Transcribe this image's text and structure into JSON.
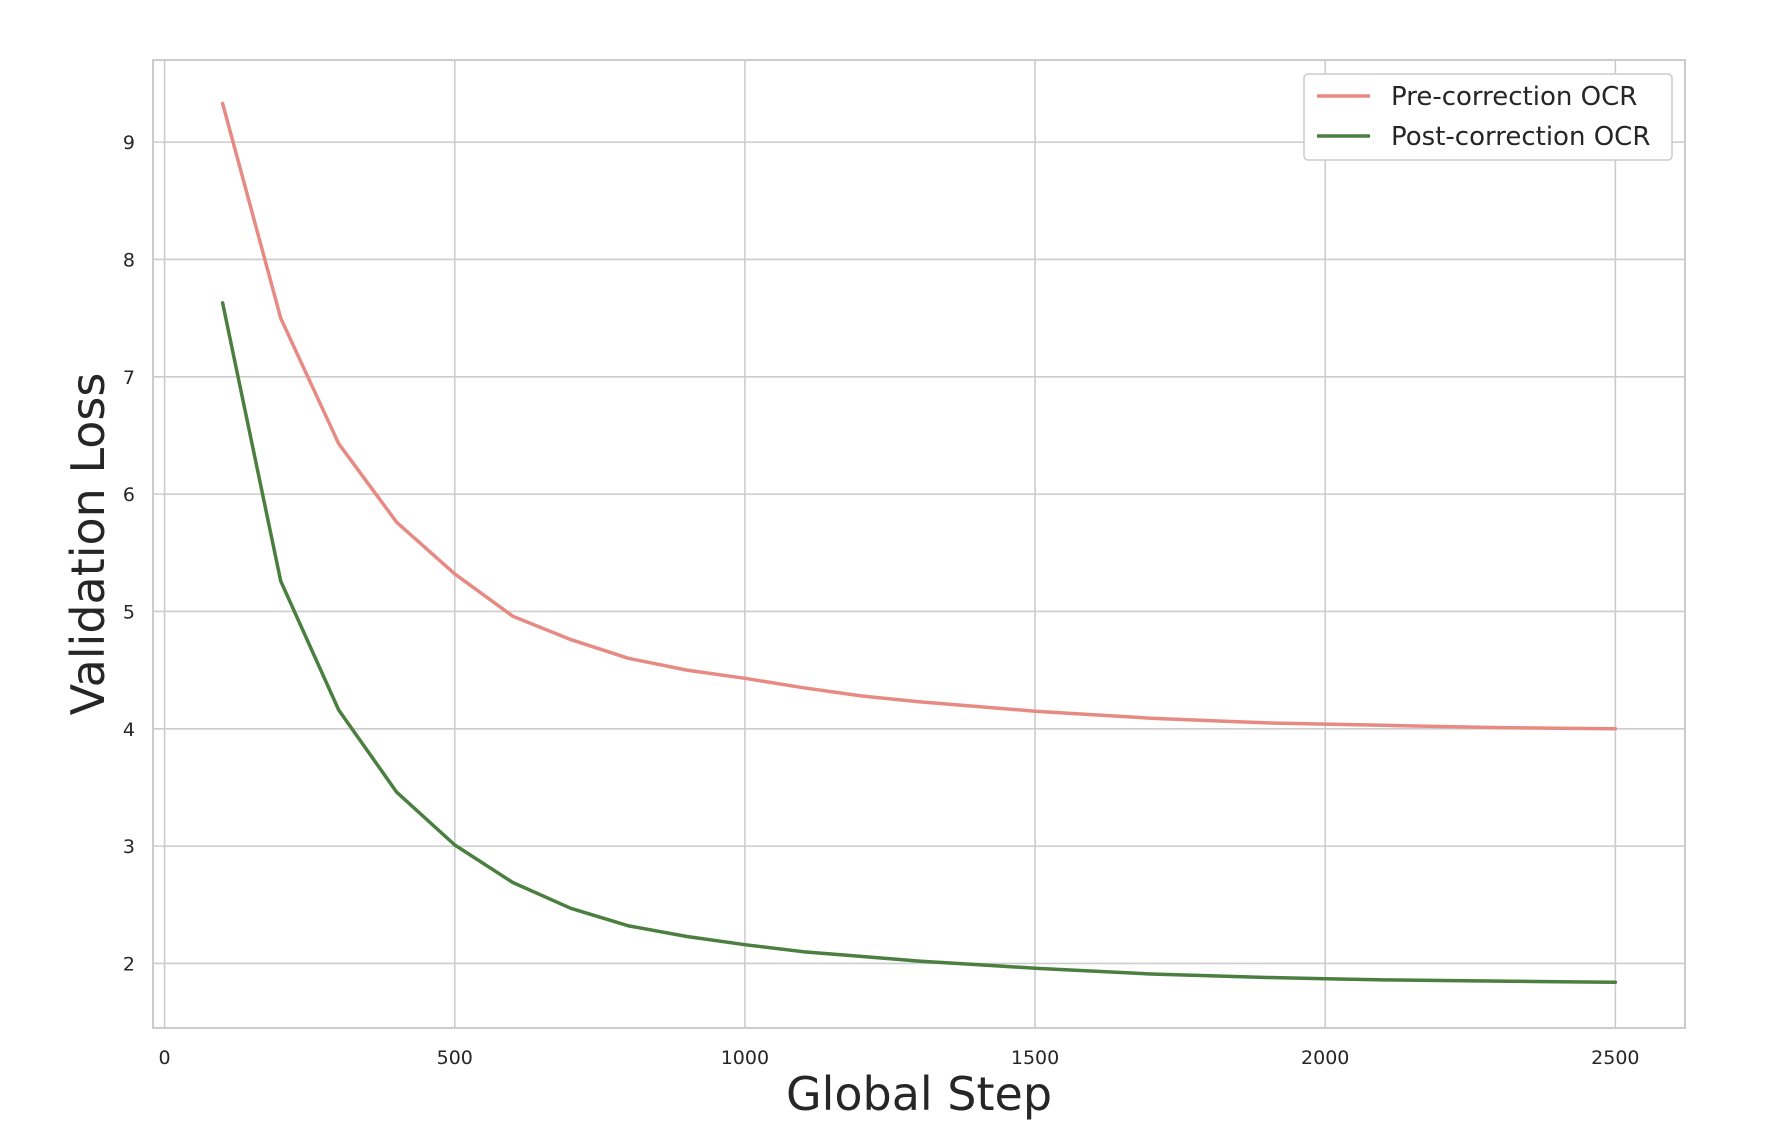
{
  "chart_data": {
    "type": "line",
    "title": "",
    "xlabel": "Global Step",
    "ylabel": "Validation Loss",
    "xlim": [
      -20,
      2620
    ],
    "ylim": [
      1.45,
      9.7
    ],
    "xticks": [
      0,
      500,
      1000,
      1500,
      2000,
      2500
    ],
    "yticks": [
      2,
      3,
      4,
      5,
      6,
      7,
      8,
      9
    ],
    "grid": true,
    "legend_position": "top-right",
    "x": [
      100,
      200,
      300,
      400,
      500,
      600,
      700,
      800,
      900,
      1000,
      1100,
      1200,
      1300,
      1400,
      1500,
      1600,
      1700,
      1800,
      1900,
      2000,
      2100,
      2200,
      2300,
      2400,
      2500
    ],
    "series": [
      {
        "name": "Pre-correction OCR",
        "color": "#e88a84",
        "values": [
          9.33,
          7.5,
          6.43,
          5.76,
          5.32,
          4.96,
          4.76,
          4.6,
          4.5,
          4.43,
          4.35,
          4.28,
          4.23,
          4.19,
          4.15,
          4.12,
          4.09,
          4.07,
          4.05,
          4.04,
          4.03,
          4.02,
          4.01,
          4.005,
          4.0
        ]
      },
      {
        "name": "Post-correction OCR",
        "color": "#4a7f3f",
        "values": [
          7.63,
          5.26,
          4.16,
          3.46,
          3.01,
          2.69,
          2.47,
          2.32,
          2.23,
          2.16,
          2.1,
          2.06,
          2.02,
          1.99,
          1.96,
          1.935,
          1.91,
          1.895,
          1.88,
          1.87,
          1.86,
          1.855,
          1.85,
          1.845,
          1.84
        ]
      }
    ]
  }
}
